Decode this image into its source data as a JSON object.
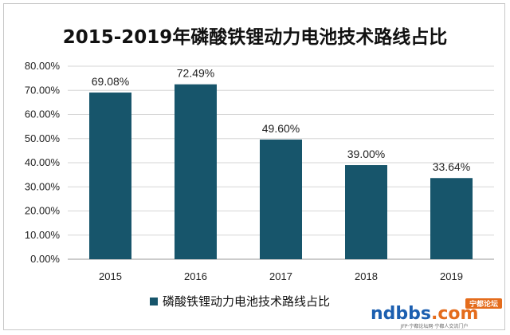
{
  "chart_data": {
    "type": "bar",
    "title": "2015-2019年磷酸铁锂动力电池技术路线占比",
    "categories": [
      "2015",
      "2016",
      "2017",
      "2018",
      "2019"
    ],
    "series": [
      {
        "name": "磷酸铁锂动力电池技术路线占比",
        "values": [
          69.08,
          72.49,
          49.6,
          39.0,
          33.64
        ],
        "labels": [
          "69.08%",
          "72.49%",
          "49.60%",
          "39.00%",
          "33.64%"
        ],
        "color": "#17556b"
      }
    ],
    "y_ticks": [
      "0.00%",
      "10.00%",
      "20.00%",
      "30.00%",
      "40.00%",
      "50.00%",
      "60.00%",
      "70.00%",
      "80.00%"
    ],
    "ylim": [
      0,
      80
    ],
    "xlabel": "",
    "ylabel": "",
    "grid": true,
    "legend_position": "bottom"
  },
  "watermark": {
    "prefix": "ndbbs",
    "suffix": ".com",
    "badge": "宁都论坛",
    "subtitle": "JFP·宁都论坛网·宁都人交流门户"
  }
}
